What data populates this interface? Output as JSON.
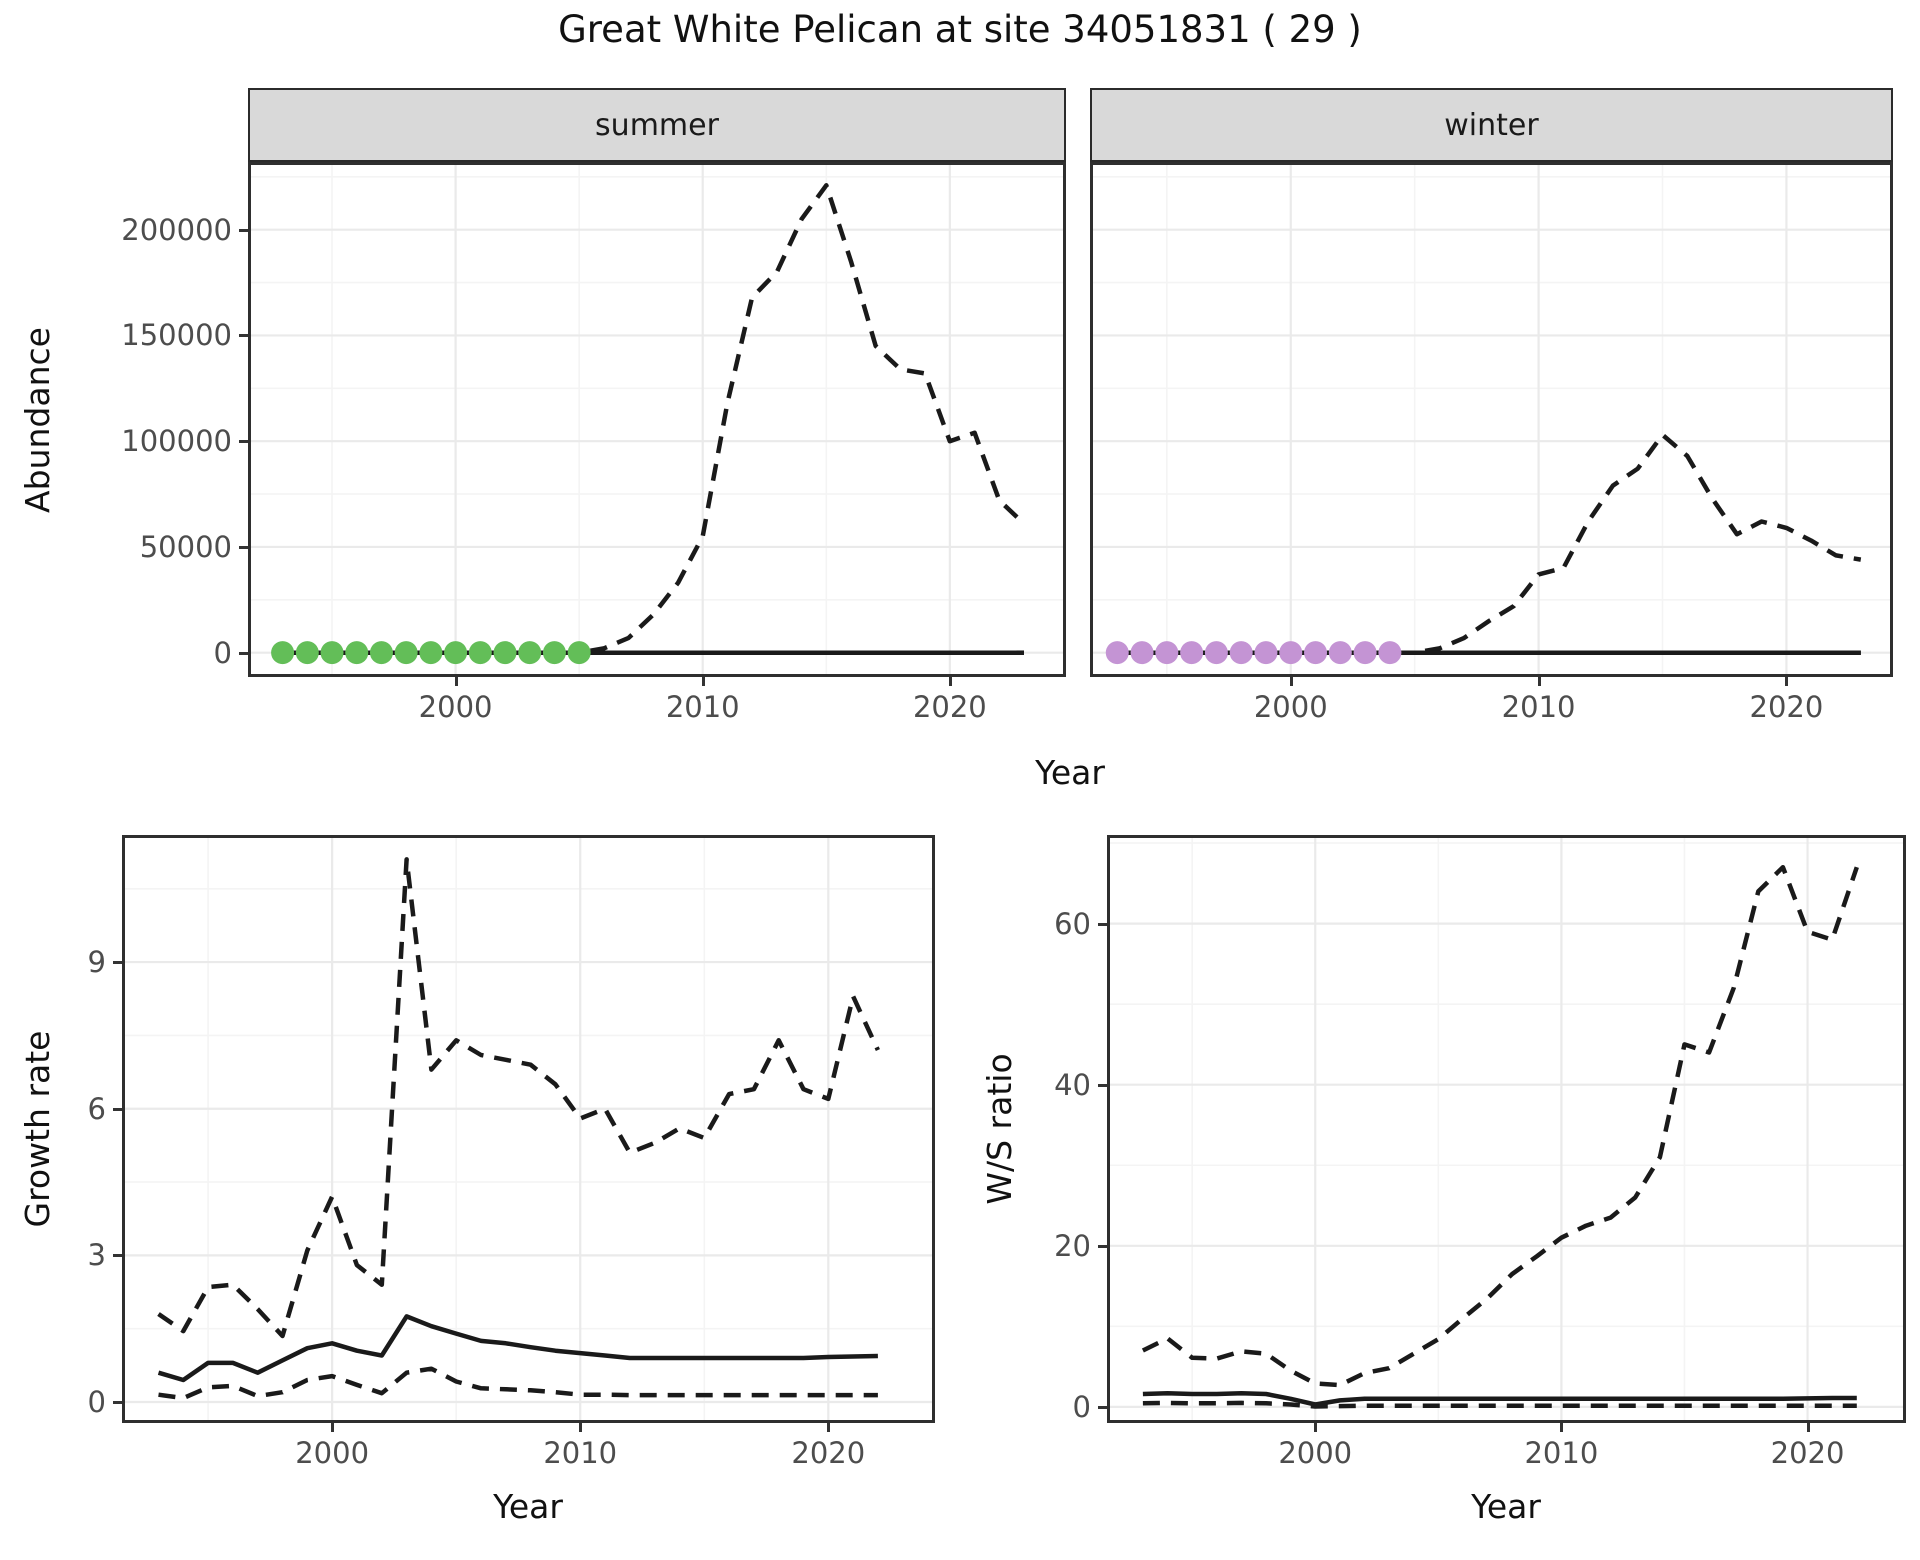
{
  "title": "Great White Pelican at site 34051831 ( 29 )",
  "facets": [
    "summer",
    "winter"
  ],
  "colors": {
    "line": "#1a1a1a",
    "summer_points": "#63be58",
    "winter_points": "#c494d4",
    "strip_background": "#d9d9d9",
    "grid_major": "#eaeaea",
    "grid_minor": "#f4f4f4",
    "axis_text": "#4d4d4d",
    "panel_border": "#2f2f2f"
  },
  "chart_data": [
    {
      "id": "abundance_summer",
      "type": "line",
      "facet": "summer",
      "xlabel": "Year",
      "ylabel": "Abundance",
      "xlim": [
        1991.6,
        2024.7
      ],
      "ylim": [
        -11500,
        232000
      ],
      "x_ticks": [
        2000,
        2010,
        2020
      ],
      "x_minor": [
        1995,
        2005,
        2015
      ],
      "y_ticks": [
        0,
        50000,
        100000,
        150000,
        200000
      ],
      "y_minor": [
        25000,
        75000,
        125000,
        175000,
        225000
      ],
      "series": [
        {
          "name": "lower_ci",
          "style": "dashed",
          "x": [
            1993,
            2023
          ],
          "y": [
            0,
            0
          ]
        },
        {
          "name": "fitted_median",
          "style": "solid",
          "x": [
            1993,
            2023
          ],
          "y": [
            0,
            0
          ]
        },
        {
          "name": "upper_ci",
          "style": "dashed",
          "x": [
            1993,
            1994,
            1995,
            1996,
            1997,
            1998,
            1999,
            2000,
            2001,
            2002,
            2003,
            2004,
            2005,
            2006,
            2007,
            2008,
            2009,
            2010,
            2011,
            2012,
            2013,
            2014,
            2015,
            2016,
            2017,
            2018,
            2019,
            2020,
            2021,
            2022,
            2023
          ],
          "y": [
            0,
            0,
            0,
            0,
            0,
            0,
            0,
            0,
            0,
            0,
            0,
            0,
            0,
            2000,
            7000,
            18000,
            33000,
            55000,
            118000,
            168000,
            180000,
            205000,
            221000,
            185000,
            145000,
            134000,
            132000,
            100000,
            104000,
            72000,
            61000
          ]
        },
        {
          "name": "observed_counts",
          "style": "points",
          "color": "#63be58",
          "x": [
            1993,
            1994,
            1995,
            1996,
            1997,
            1998,
            1999,
            2000,
            2001,
            2002,
            2003,
            2004,
            2005
          ],
          "y": [
            0,
            0,
            0,
            0,
            0,
            0,
            0,
            0,
            0,
            0,
            0,
            0,
            0
          ]
        }
      ]
    },
    {
      "id": "abundance_winter",
      "type": "line",
      "facet": "winter",
      "xlabel": "Year",
      "ylabel": "Abundance",
      "xlim": [
        1991.9,
        2024.3
      ],
      "ylim": [
        -11500,
        232000
      ],
      "x_ticks": [
        2000,
        2010,
        2020
      ],
      "x_minor": [
        1995,
        2005,
        2015
      ],
      "y_ticks": [
        0,
        50000,
        100000,
        150000,
        200000
      ],
      "y_minor": [
        25000,
        75000,
        125000,
        175000,
        225000
      ],
      "series": [
        {
          "name": "lower_ci",
          "style": "dashed",
          "x": [
            1993,
            2023
          ],
          "y": [
            0,
            0
          ]
        },
        {
          "name": "fitted_median",
          "style": "solid",
          "x": [
            1993,
            2023
          ],
          "y": [
            0,
            0
          ]
        },
        {
          "name": "upper_ci",
          "style": "dashed",
          "x": [
            1993,
            1994,
            1995,
            1996,
            1997,
            1998,
            1999,
            2000,
            2001,
            2002,
            2003,
            2004,
            2005,
            2006,
            2007,
            2008,
            2009,
            2010,
            2011,
            2012,
            2013,
            2014,
            2015,
            2016,
            2017,
            2018,
            2019,
            2020,
            2021,
            2022,
            2023
          ],
          "y": [
            0,
            0,
            0,
            0,
            0,
            0,
            0,
            0,
            0,
            0,
            0,
            0,
            0,
            2000,
            7000,
            15000,
            22000,
            37000,
            40000,
            62000,
            79000,
            87000,
            103000,
            93000,
            73000,
            56000,
            62000,
            59000,
            53000,
            46000,
            44000
          ]
        },
        {
          "name": "observed_counts",
          "style": "points",
          "color": "#c494d4",
          "x": [
            1993,
            1994,
            1995,
            1996,
            1997,
            1998,
            1999,
            2000,
            2001,
            2002,
            2003,
            2004
          ],
          "y": [
            0,
            0,
            0,
            0,
            0,
            0,
            0,
            0,
            0,
            0,
            0,
            0
          ]
        }
      ]
    },
    {
      "id": "growth_rate",
      "type": "line",
      "xlabel": "Year",
      "ylabel": "Growth rate",
      "xlim": [
        1991.53,
        2024.3
      ],
      "ylim": [
        -0.43,
        11.6
      ],
      "x_ticks": [
        2000,
        2010,
        2020
      ],
      "x_minor": [
        1995,
        2005,
        2015
      ],
      "y_ticks": [
        0,
        3,
        6,
        9
      ],
      "y_minor": [
        1.5,
        4.5,
        7.5,
        10.5
      ],
      "series": [
        {
          "name": "lower_ci",
          "style": "dashed",
          "x": [
            1993,
            1994,
            1995,
            1996,
            1997,
            1998,
            1999,
            2000,
            2001,
            2002,
            2003,
            2004,
            2005,
            2006,
            2007,
            2008,
            2009,
            2010,
            2011,
            2012,
            2013,
            2014,
            2015,
            2016,
            2017,
            2018,
            2019,
            2020,
            2021,
            2022
          ],
          "y": [
            0.15,
            0.08,
            0.3,
            0.33,
            0.12,
            0.2,
            0.45,
            0.53,
            0.35,
            0.18,
            0.6,
            0.68,
            0.42,
            0.28,
            0.26,
            0.24,
            0.2,
            0.15,
            0.15,
            0.14,
            0.14,
            0.14,
            0.14,
            0.14,
            0.14,
            0.14,
            0.14,
            0.14,
            0.14,
            0.14
          ]
        },
        {
          "name": "fitted_median",
          "style": "solid",
          "x": [
            1993,
            1994,
            1995,
            1996,
            1997,
            1998,
            1999,
            2000,
            2001,
            2002,
            2003,
            2004,
            2005,
            2006,
            2007,
            2008,
            2009,
            2010,
            2011,
            2012,
            2013,
            2014,
            2015,
            2016,
            2017,
            2018,
            2019,
            2020,
            2021,
            2022
          ],
          "y": [
            0.6,
            0.45,
            0.8,
            0.8,
            0.6,
            0.85,
            1.1,
            1.2,
            1.05,
            0.95,
            1.75,
            1.55,
            1.4,
            1.25,
            1.2,
            1.12,
            1.05,
            1.0,
            0.95,
            0.9,
            0.9,
            0.9,
            0.9,
            0.9,
            0.9,
            0.9,
            0.9,
            0.92,
            0.93,
            0.94
          ]
        },
        {
          "name": "upper_ci",
          "style": "dashed",
          "x": [
            1993,
            1994,
            1995,
            1996,
            1997,
            1998,
            1999,
            2000,
            2001,
            2002,
            2003,
            2004,
            2005,
            2006,
            2007,
            2008,
            2009,
            2010,
            2011,
            2012,
            2013,
            2014,
            2015,
            2016,
            2017,
            2018,
            2019,
            2020,
            2021,
            2022
          ],
          "y": [
            1.8,
            1.45,
            2.35,
            2.4,
            1.9,
            1.35,
            3.1,
            4.2,
            2.8,
            2.4,
            11.1,
            6.8,
            7.4,
            7.1,
            7.0,
            6.9,
            6.5,
            5.8,
            6.0,
            5.1,
            5.3,
            5.6,
            5.4,
            6.3,
            6.4,
            7.4,
            6.4,
            6.2,
            8.3,
            7.2
          ]
        }
      ]
    },
    {
      "id": "ws_ratio",
      "type": "line",
      "xlabel": "Year",
      "ylabel": "W/S ratio",
      "xlim": [
        1991.54,
        2024.0
      ],
      "ylim": [
        -2,
        71
      ],
      "x_ticks": [
        2000,
        2010,
        2020
      ],
      "x_minor": [
        1995,
        2005,
        2015
      ],
      "y_ticks": [
        0,
        20,
        40,
        60
      ],
      "y_minor": [
        10,
        30,
        50,
        70
      ],
      "series": [
        {
          "name": "lower_ci",
          "style": "dashed",
          "x": [
            1993,
            1994,
            1995,
            1996,
            1997,
            1998,
            1999,
            2000,
            2001,
            2002,
            2003,
            2004,
            2005,
            2006,
            2007,
            2008,
            2009,
            2010,
            2011,
            2012,
            2013,
            2014,
            2015,
            2016,
            2017,
            2018,
            2019,
            2020,
            2021,
            2022
          ],
          "y": [
            0.45,
            0.5,
            0.45,
            0.45,
            0.5,
            0.45,
            0.3,
            0.05,
            0.1,
            0.15,
            0.15,
            0.15,
            0.15,
            0.15,
            0.15,
            0.15,
            0.15,
            0.15,
            0.15,
            0.15,
            0.15,
            0.15,
            0.15,
            0.15,
            0.15,
            0.15,
            0.15,
            0.15,
            0.15,
            0.15
          ]
        },
        {
          "name": "fitted_median",
          "style": "solid",
          "x": [
            1993,
            1994,
            1995,
            1996,
            1997,
            1998,
            1999,
            2000,
            2001,
            2002,
            2003,
            2004,
            2005,
            2006,
            2007,
            2008,
            2009,
            2010,
            2011,
            2012,
            2013,
            2014,
            2015,
            2016,
            2017,
            2018,
            2019,
            2020,
            2021,
            2022
          ],
          "y": [
            1.6,
            1.7,
            1.6,
            1.6,
            1.7,
            1.6,
            1.0,
            0.3,
            0.8,
            1.0,
            1.0,
            1.0,
            1.0,
            1.0,
            1.0,
            1.0,
            1.0,
            1.0,
            1.0,
            1.0,
            1.0,
            1.0,
            1.0,
            1.0,
            1.0,
            1.0,
            1.0,
            1.05,
            1.1,
            1.1
          ]
        },
        {
          "name": "upper_ci",
          "style": "dashed",
          "x": [
            1993,
            1994,
            1995,
            1996,
            1997,
            1998,
            1999,
            2000,
            2001,
            2002,
            2003,
            2004,
            2005,
            2006,
            2007,
            2008,
            2009,
            2010,
            2011,
            2012,
            2013,
            2014,
            2015,
            2016,
            2017,
            2018,
            2019,
            2020,
            2021,
            2022
          ],
          "y": [
            7.0,
            8.5,
            6.1,
            6.0,
            6.9,
            6.6,
            4.5,
            2.9,
            2.7,
            4.2,
            4.8,
            6.6,
            8.4,
            11,
            13.5,
            16.5,
            18.7,
            21,
            22.5,
            23.5,
            26,
            31,
            45,
            44,
            52,
            64,
            67,
            59,
            58,
            67
          ]
        }
      ]
    }
  ]
}
